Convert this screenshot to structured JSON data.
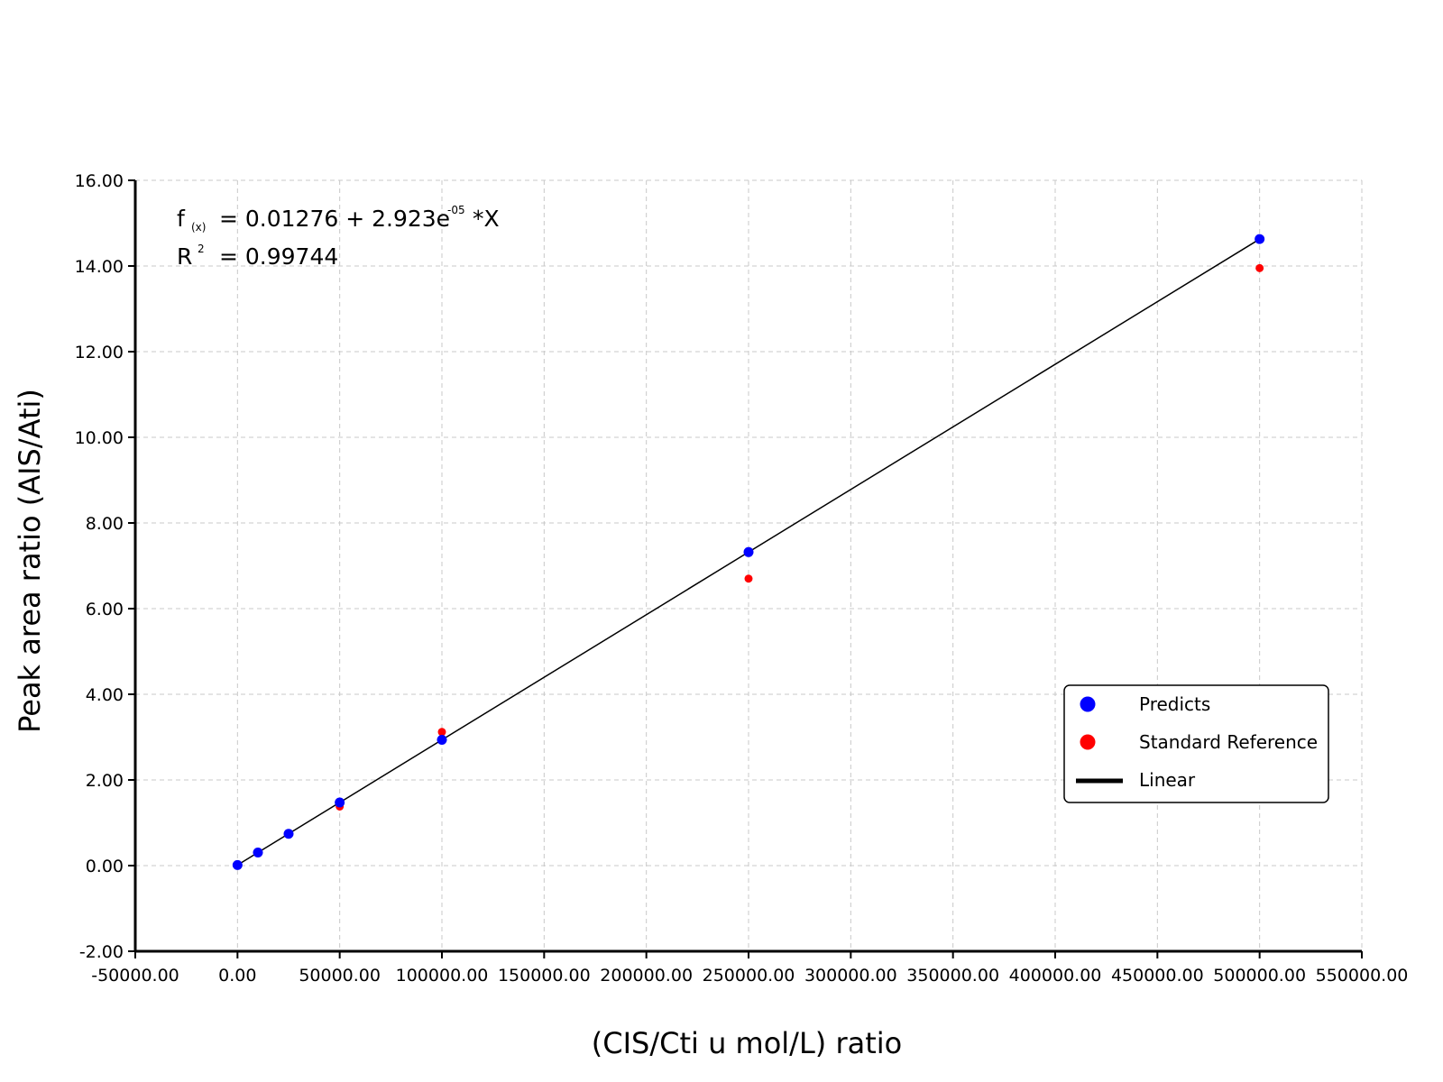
{
  "chart_data": {
    "type": "scatter",
    "xlabel": "(CIS/Cti u mol/L) ratio",
    "ylabel": "Peak area ratio (AIS/Ati)",
    "xlim": [
      -50000,
      550000
    ],
    "ylim": [
      -2,
      16
    ],
    "x_ticks": [
      -50000,
      0,
      50000,
      100000,
      150000,
      200000,
      250000,
      300000,
      350000,
      400000,
      450000,
      500000,
      550000
    ],
    "x_tick_labels": [
      "-50000.00",
      "0.00",
      "50000.00",
      "100000.00",
      "150000.00",
      "200000.00",
      "250000.00",
      "300000.00",
      "350000.00",
      "400000.00",
      "450000.00",
      "500000.00",
      "550000.00"
    ],
    "y_ticks": [
      -2,
      0,
      2,
      4,
      6,
      8,
      10,
      12,
      14,
      16
    ],
    "y_tick_labels": [
      "-2.00",
      "0.00",
      "2.00",
      "4.00",
      "6.00",
      "8.00",
      "10.00",
      "12.00",
      "14.00",
      "16.00"
    ],
    "grid": true,
    "legend_position": "bottom-right",
    "equation": {
      "f_prefix": "f",
      "f_sub": "(x)",
      "f_rest": "= 0.01276 + 2.923e",
      "f_exp": "-05",
      "f_tail": "*X",
      "r_prefix": "R",
      "r_sup": "2",
      "r_rest": "= 0.99744"
    },
    "series": [
      {
        "name": "Predicts",
        "color": "#0000ff",
        "kind": "points",
        "x": [
          0,
          10000,
          25000,
          50000,
          100000,
          250000,
          500000
        ],
        "y": [
          0.013,
          0.305,
          0.743,
          1.474,
          2.936,
          7.32,
          14.628
        ]
      },
      {
        "name": "Standard Reference",
        "color": "#ff0000",
        "kind": "points",
        "x": [
          0,
          10000,
          25000,
          50000,
          100000,
          250000,
          500000
        ],
        "y": [
          0.02,
          0.3,
          0.75,
          1.38,
          3.12,
          6.7,
          13.95
        ]
      },
      {
        "name": "Linear",
        "color": "#000000",
        "kind": "line",
        "x": [
          0,
          500000
        ],
        "y": [
          0.01276,
          14.62776
        ]
      }
    ]
  }
}
